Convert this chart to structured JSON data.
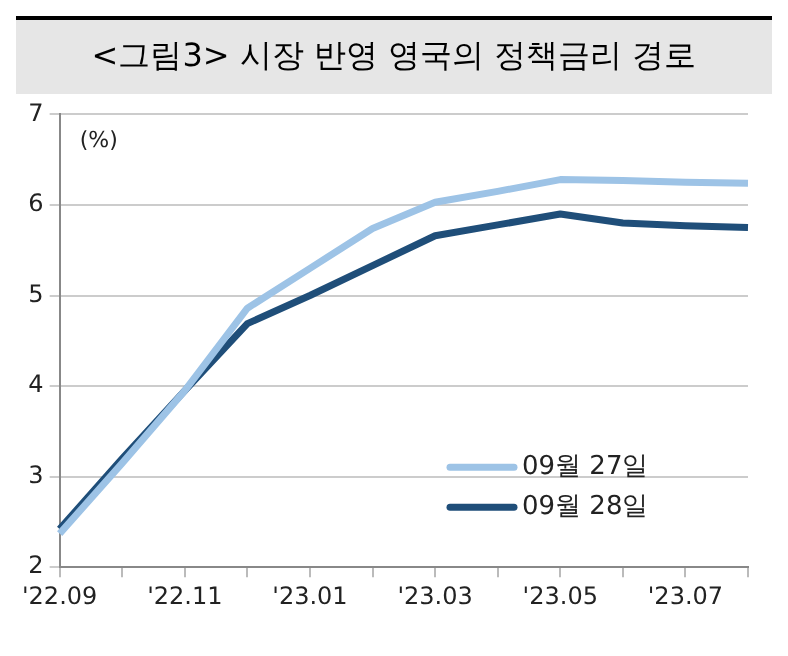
{
  "chart_data": {
    "type": "line",
    "title": "<그림3> 시장 반영 영국의 정책금리 경로",
    "ylabel": "(%)",
    "categories": [
      "'22.09",
      null,
      "'22.11",
      null,
      "'23.01",
      null,
      "'23.03",
      null,
      "'23.05",
      null,
      "'23.07",
      null
    ],
    "series": [
      {
        "name": "09월 27일",
        "color": "#9dc3e6",
        "values": [
          2.37,
          3.15,
          3.95,
          4.86,
          5.3,
          5.74,
          6.03,
          6.15,
          6.28,
          6.27,
          6.25,
          6.24
        ]
      },
      {
        "name": "09월 28일",
        "color": "#1f4e79",
        "values": [
          2.42,
          3.2,
          3.95,
          4.69,
          5.0,
          5.33,
          5.66,
          5.78,
          5.9,
          5.8,
          5.77,
          5.75
        ]
      }
    ],
    "ylim": [
      2,
      7
    ],
    "yticks": [
      2,
      3,
      4,
      5,
      6,
      7
    ],
    "grid": "y",
    "legend": "bottom right",
    "marker": "none",
    "line_style": "solid"
  }
}
